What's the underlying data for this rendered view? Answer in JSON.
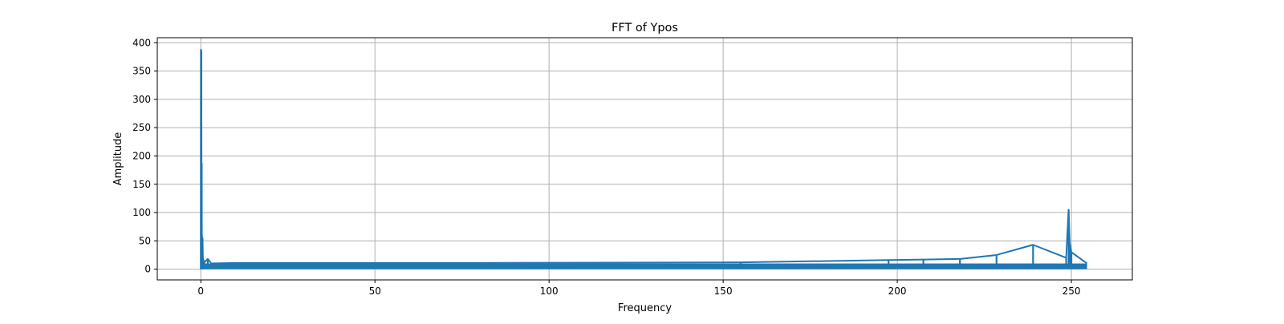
{
  "chart_data": {
    "type": "line",
    "title": "FFT of Ypos",
    "xlabel": "Frequency",
    "ylabel": "Amplitude",
    "xlim": [
      -12.5,
      267.5
    ],
    "ylim": [
      -19,
      409
    ],
    "x_ticks": [
      0,
      50,
      100,
      150,
      200,
      250
    ],
    "y_ticks": [
      0,
      50,
      100,
      150,
      200,
      250,
      300,
      350,
      400
    ],
    "grid": true,
    "colors": {
      "line": "#1f77b4",
      "grid": "#b0b0b0",
      "axes": "#000000"
    },
    "series": [
      {
        "x_range": [
          0,
          254.5
        ],
        "noise_floor": [
          0,
          10
        ],
        "points": [
          [
            0,
            0
          ],
          [
            0.05,
            388
          ],
          [
            0.1,
            320
          ],
          [
            0.15,
            385
          ],
          [
            0.2,
            150
          ],
          [
            0.25,
            187
          ],
          [
            0.3,
            60
          ],
          [
            0.4,
            40
          ],
          [
            0.5,
            55
          ],
          [
            0.6,
            20
          ],
          [
            0.8,
            15
          ],
          [
            1,
            12
          ],
          [
            2,
            18
          ],
          [
            3,
            10
          ],
          [
            10,
            11
          ],
          [
            78,
            11
          ],
          [
            155,
            12
          ],
          [
            197.5,
            16
          ],
          [
            207.5,
            17
          ],
          [
            218,
            18
          ],
          [
            228.5,
            25
          ],
          [
            239,
            43
          ],
          [
            248.5,
            20
          ],
          [
            249.2,
            105
          ],
          [
            249.5,
            47
          ],
          [
            250,
            30
          ],
          [
            254.5,
            10
          ]
        ]
      }
    ]
  }
}
